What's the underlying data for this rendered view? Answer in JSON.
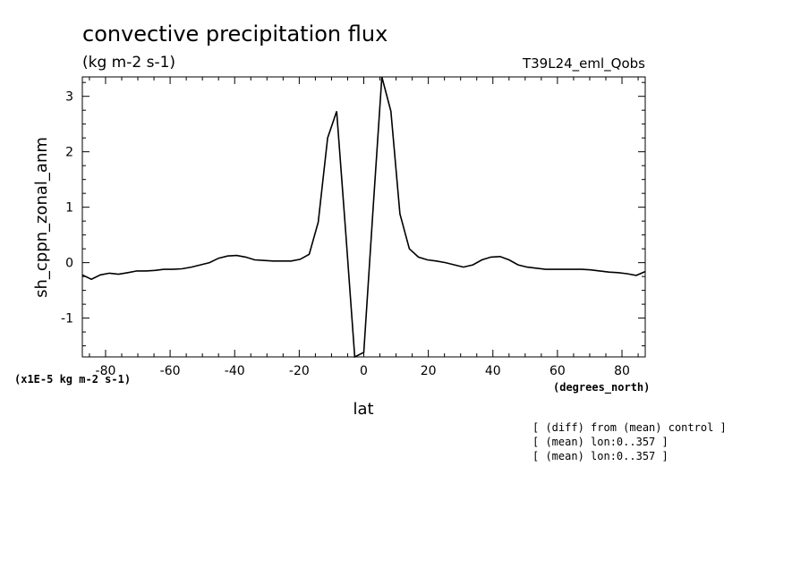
{
  "chart_data": {
    "type": "line",
    "title": "convective precipitation flux",
    "units": "(kg m-2 s-1)",
    "run_label": "T39L24_eml_Qobs",
    "ylabel": "sh_cppn_zonal_anm",
    "xlabel": "lat",
    "x_units": "(degrees_north)",
    "y_scale_note": "(x1E-5 kg m-2 s-1)",
    "xlim": [
      -87.2,
      87.2
    ],
    "ylim": [
      -1.7,
      3.35
    ],
    "x_ticks": [
      -80,
      -60,
      -40,
      -20,
      0,
      20,
      40,
      60,
      80
    ],
    "x_tick_labels": [
      "-80",
      "-60",
      "-40",
      "-20",
      "0",
      "20",
      "40",
      "60",
      "80"
    ],
    "y_ticks": [
      -1,
      0,
      1,
      2,
      3
    ],
    "y_tick_labels": [
      "-1",
      "0",
      "1",
      "2",
      "3"
    ],
    "grid": false,
    "series": [
      {
        "x": [
          -87.2,
          -84.4,
          -81.6,
          -78.8,
          -76.0,
          -73.1,
          -70.3,
          -67.5,
          -64.7,
          -61.9,
          -59.1,
          -56.3,
          -53.4,
          -50.6,
          -47.8,
          -45.0,
          -42.2,
          -39.4,
          -36.6,
          -33.8,
          -30.9,
          -28.1,
          -25.3,
          -22.5,
          -19.7,
          -16.9,
          -14.1,
          -11.2,
          -8.4,
          -5.6,
          -2.8,
          0.0,
          2.8,
          5.6,
          8.4,
          11.2,
          14.1,
          16.9,
          19.7,
          22.5,
          25.3,
          28.1,
          30.9,
          33.8,
          36.6,
          39.4,
          42.2,
          45.0,
          47.8,
          50.6,
          53.4,
          56.3,
          59.1,
          61.9,
          64.7,
          67.5,
          70.3,
          73.1,
          76.0,
          78.8,
          81.6,
          84.4,
          87.2
        ],
        "values": [
          -0.22,
          -0.3,
          -0.22,
          -0.19,
          -0.21,
          -0.18,
          -0.15,
          -0.15,
          -0.14,
          -0.12,
          -0.12,
          -0.11,
          -0.08,
          -0.04,
          0.0,
          0.08,
          0.12,
          0.13,
          0.1,
          0.05,
          0.04,
          0.03,
          0.03,
          0.03,
          0.06,
          0.15,
          0.73,
          2.25,
          2.73,
          0.55,
          -1.72,
          -1.62,
          0.9,
          3.35,
          2.73,
          0.88,
          0.25,
          0.1,
          0.05,
          0.03,
          0.0,
          -0.04,
          -0.08,
          -0.04,
          0.05,
          0.1,
          0.11,
          0.05,
          -0.04,
          -0.08,
          -0.1,
          -0.12,
          -0.12,
          -0.12,
          -0.12,
          -0.12,
          -0.13,
          -0.15,
          -0.17,
          -0.18,
          -0.2,
          -0.23,
          -0.16
        ]
      }
    ]
  },
  "annotations": [
    "[ (diff) from (mean) control ]",
    "[ (mean) lon:0..357 ]",
    "[ (mean) lon:0..357 ]"
  ]
}
